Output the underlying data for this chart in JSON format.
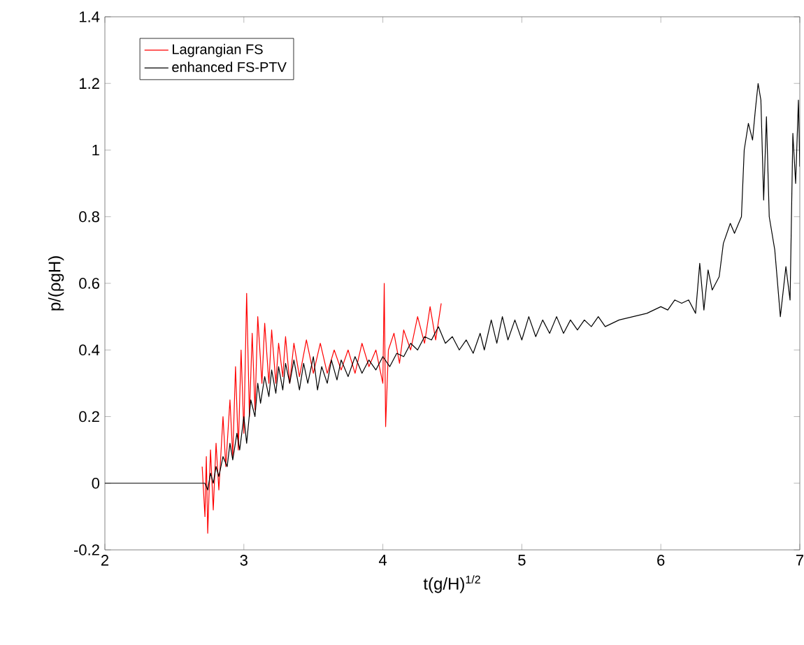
{
  "chart_data": {
    "type": "line",
    "xlabel": "t(g/H)$^{1/2}$",
    "ylabel": "p/(ρgH)",
    "xlim": [
      2,
      7
    ],
    "ylim": [
      -0.2,
      1.4
    ],
    "xticks": [
      2,
      3,
      4,
      5,
      6,
      7
    ],
    "yticks": [
      -0.2,
      0,
      0.2,
      0.4,
      0.6,
      0.8,
      1,
      1.2,
      1.4
    ],
    "legend": "top left",
    "grid": false,
    "marker": "none",
    "line_style": "solid",
    "series": [
      {
        "name": "Lagrangian FS",
        "color": "#ff0000",
        "x": [
          2.7,
          2.72,
          2.73,
          2.74,
          2.76,
          2.78,
          2.8,
          2.82,
          2.85,
          2.87,
          2.9,
          2.92,
          2.94,
          2.96,
          2.98,
          3.0,
          3.02,
          3.04,
          3.06,
          3.08,
          3.1,
          3.13,
          3.15,
          3.18,
          3.2,
          3.23,
          3.25,
          3.28,
          3.3,
          3.33,
          3.36,
          3.4,
          3.45,
          3.5,
          3.55,
          3.6,
          3.65,
          3.7,
          3.75,
          3.8,
          3.85,
          3.9,
          3.95,
          4.0,
          4.01,
          4.02,
          4.04,
          4.08,
          4.12,
          4.15,
          4.2,
          4.25,
          4.3,
          4.34,
          4.38,
          4.42
        ],
        "values": [
          0.05,
          -0.1,
          0.08,
          -0.15,
          0.1,
          -0.08,
          0.12,
          -0.02,
          0.2,
          0.05,
          0.25,
          0.08,
          0.35,
          0.1,
          0.4,
          0.15,
          0.57,
          0.2,
          0.45,
          0.22,
          0.5,
          0.3,
          0.48,
          0.3,
          0.46,
          0.3,
          0.42,
          0.32,
          0.44,
          0.3,
          0.42,
          0.32,
          0.43,
          0.33,
          0.42,
          0.33,
          0.4,
          0.34,
          0.4,
          0.33,
          0.42,
          0.35,
          0.4,
          0.3,
          0.6,
          0.17,
          0.4,
          0.45,
          0.36,
          0.46,
          0.4,
          0.5,
          0.42,
          0.53,
          0.43,
          0.54
        ]
      },
      {
        "name": "enhanced FS-PTV",
        "color": "#000000",
        "x": [
          2,
          2.72,
          2.74,
          2.76,
          2.78,
          2.8,
          2.82,
          2.85,
          2.88,
          2.9,
          2.92,
          2.95,
          2.97,
          3.0,
          3.02,
          3.05,
          3.08,
          3.1,
          3.12,
          3.15,
          3.18,
          3.2,
          3.23,
          3.25,
          3.28,
          3.3,
          3.33,
          3.36,
          3.4,
          3.43,
          3.46,
          3.5,
          3.53,
          3.56,
          3.6,
          3.63,
          3.67,
          3.7,
          3.75,
          3.8,
          3.85,
          3.9,
          3.95,
          4.0,
          4.05,
          4.1,
          4.15,
          4.2,
          4.25,
          4.3,
          4.35,
          4.4,
          4.45,
          4.5,
          4.55,
          4.6,
          4.65,
          4.7,
          4.73,
          4.78,
          4.82,
          4.86,
          4.9,
          4.95,
          5.0,
          5.05,
          5.1,
          5.15,
          5.2,
          5.25,
          5.3,
          5.35,
          5.4,
          5.45,
          5.5,
          5.55,
          5.6,
          5.7,
          5.8,
          5.9,
          6.0,
          6.05,
          6.1,
          6.15,
          6.2,
          6.25,
          6.28,
          6.31,
          6.34,
          6.37,
          6.42,
          6.45,
          6.5,
          6.53,
          6.58,
          6.6,
          6.63,
          6.66,
          6.68,
          6.7,
          6.72,
          6.74,
          6.76,
          6.78,
          6.82,
          6.86,
          6.9,
          6.93,
          6.95,
          6.97,
          6.99,
          7.0
        ],
        "values": [
          0,
          0,
          -0.02,
          0.03,
          0.0,
          0.05,
          0.02,
          0.08,
          0.05,
          0.12,
          0.07,
          0.15,
          0.1,
          0.2,
          0.12,
          0.25,
          0.2,
          0.3,
          0.24,
          0.32,
          0.26,
          0.34,
          0.27,
          0.35,
          0.28,
          0.36,
          0.3,
          0.37,
          0.28,
          0.36,
          0.3,
          0.38,
          0.28,
          0.35,
          0.3,
          0.37,
          0.31,
          0.37,
          0.32,
          0.38,
          0.33,
          0.37,
          0.34,
          0.38,
          0.35,
          0.39,
          0.38,
          0.42,
          0.4,
          0.44,
          0.43,
          0.47,
          0.42,
          0.44,
          0.4,
          0.43,
          0.39,
          0.45,
          0.4,
          0.49,
          0.42,
          0.5,
          0.43,
          0.49,
          0.43,
          0.5,
          0.44,
          0.49,
          0.45,
          0.5,
          0.45,
          0.49,
          0.46,
          0.49,
          0.47,
          0.5,
          0.47,
          0.49,
          0.5,
          0.51,
          0.53,
          0.52,
          0.55,
          0.54,
          0.55,
          0.51,
          0.66,
          0.52,
          0.64,
          0.58,
          0.62,
          0.72,
          0.78,
          0.75,
          0.8,
          1.0,
          1.08,
          1.03,
          1.12,
          1.2,
          1.15,
          0.85,
          1.1,
          0.8,
          0.7,
          0.5,
          0.65,
          0.55,
          1.05,
          0.9,
          1.15,
          0.95
        ]
      }
    ]
  }
}
